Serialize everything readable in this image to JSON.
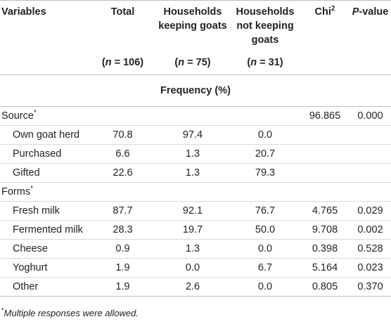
{
  "header": {
    "variables": "Variables",
    "total": "Total",
    "keeping": "Households keeping goats",
    "not_keeping": "Households not keeping goats",
    "chi": "Chi",
    "chi_sup": "2",
    "p_italic": "P",
    "p_rest": "-value"
  },
  "subheader": {
    "total_n": "(n = 106)",
    "keeping_n": "(n = 75)",
    "not_keeping_n": "(n = 31)"
  },
  "frequency_label": "Frequency (%)",
  "sections": {
    "source": {
      "label": "Source",
      "marker": "*",
      "chi": "96.865",
      "p": "0.000"
    },
    "forms": {
      "label": "Forms",
      "marker": "*"
    }
  },
  "rows": {
    "own": {
      "label": "Own goat herd",
      "total": "70.8",
      "keeping": "97.4",
      "not_keeping": "0.0",
      "chi": "",
      "p": ""
    },
    "purchased": {
      "label": "Purchased",
      "total": "6.6",
      "keeping": "1.3",
      "not_keeping": "20.7",
      "chi": "",
      "p": ""
    },
    "gifted": {
      "label": "Gifted",
      "total": "22.6",
      "keeping": "1.3",
      "not_keeping": "79.3",
      "chi": "",
      "p": ""
    },
    "fresh": {
      "label": "Fresh milk",
      "total": "87.7",
      "keeping": "92.1",
      "not_keeping": "76.7",
      "chi": "4.765",
      "p": "0.029"
    },
    "fermented": {
      "label": "Fermented milk",
      "total": "28.3",
      "keeping": "19.7",
      "not_keeping": "50.0",
      "chi": "9.708",
      "p": "0.002"
    },
    "cheese": {
      "label": "Cheese",
      "total": "0.9",
      "keeping": "1.3",
      "not_keeping": "0.0",
      "chi": "0.398",
      "p": "0.528"
    },
    "yoghurt": {
      "label": "Yoghurt",
      "total": "1.9",
      "keeping": "0.0",
      "not_keeping": "6.7",
      "chi": "5.164",
      "p": "0.023"
    },
    "other": {
      "label": "Other",
      "total": "1.9",
      "keeping": "2.6",
      "not_keeping": "0.0",
      "chi": "0.805",
      "p": "0.370"
    }
  },
  "footnote": {
    "marker": "*",
    "text": "Multiple responses were allowed."
  }
}
